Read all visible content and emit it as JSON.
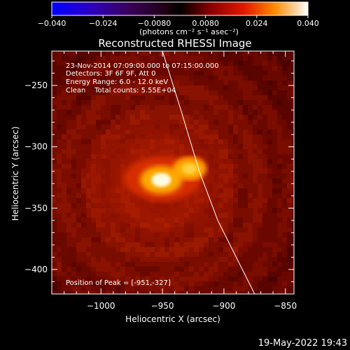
{
  "colorbar": {
    "ticks": [
      "−0.040",
      "−0.024",
      "−0.0080",
      "0.0080",
      "0.024",
      "0.040"
    ],
    "unit_label": "(photons cm⁻² s⁻¹ asec⁻²)",
    "range": [
      -0.04,
      0.04
    ]
  },
  "chart_data": {
    "type": "heatmap",
    "title": "Reconstructed RHESSI Image",
    "xlabel": "Heliocentric X (arcsec)",
    "ylabel": "Heliocentric Y (arcsec)",
    "xlim": [
      -1040,
      -843
    ],
    "ylim": [
      -420,
      -222
    ],
    "x_ticks": [
      -1000,
      -950,
      -900,
      -850
    ],
    "x_tick_labels": [
      "−1000",
      "−950",
      "−900",
      "−850"
    ],
    "y_ticks": [
      -250,
      -300,
      -350,
      -400
    ],
    "y_tick_labels": [
      "−250",
      "−300",
      "−350",
      "−400"
    ],
    "annotations": [
      "23-Nov-2014 07:09:00.000 to 07:15:00.000",
      "Detectors: 3F 6F 9F, Att 0",
      "Energy Range: 6.0 - 12.0 keV",
      "Clean    Total counts: 5.55E+04"
    ],
    "peak_label": "Position of Peak = [-951,-327]",
    "sources": [
      {
        "x": -951,
        "y": -327,
        "peak": 0.04
      },
      {
        "x": -928,
        "y": -318,
        "peak": 0.029
      }
    ],
    "limb_curve": [
      [
        -950,
        -222
      ],
      [
        -935,
        -270
      ],
      [
        -920,
        -320
      ],
      [
        -905,
        -360
      ],
      [
        -875,
        -420
      ]
    ]
  },
  "footer": {
    "date": "19-May-2022 19:43"
  }
}
